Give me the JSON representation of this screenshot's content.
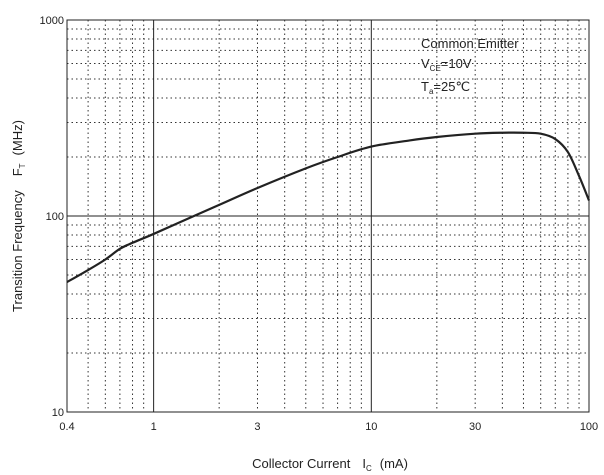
{
  "chart_data": {
    "type": "line",
    "xscale": "log",
    "yscale": "log",
    "xlim": [
      0.4,
      100
    ],
    "ylim": [
      10,
      1000
    ],
    "grid": true,
    "xlabel": {
      "text": "Collector Current",
      "symbol": "I",
      "subscript": "C",
      "unit": "(mA)"
    },
    "ylabel": {
      "text": "Transition Frequency",
      "symbol": "F",
      "subscript": "T",
      "unit": "(MHz)"
    },
    "x_ticks": [
      {
        "value": 0.4,
        "label": "0.4"
      },
      {
        "value": 1,
        "label": "1"
      },
      {
        "value": 3,
        "label": "3"
      },
      {
        "value": 10,
        "label": "10"
      },
      {
        "value": 30,
        "label": "30"
      },
      {
        "value": 100,
        "label": "100"
      }
    ],
    "y_ticks": [
      {
        "value": 10,
        "label": "10"
      },
      {
        "value": 100,
        "label": "100"
      },
      {
        "value": 1000,
        "label": "1000"
      }
    ],
    "annotations": [
      {
        "main": "Common Emitter",
        "sub": "",
        "rest": ""
      },
      {
        "main": "V",
        "sub": "CE",
        "rest": "=10V"
      },
      {
        "main": "T",
        "sub": "a",
        "rest": "=25℃"
      }
    ],
    "series": [
      {
        "color": "#222222",
        "x": [
          0.4,
          0.5,
          0.6,
          0.7,
          0.8,
          1.0,
          1.5,
          2,
          3,
          5,
          7,
          10,
          15,
          20,
          30,
          40,
          50,
          60,
          70,
          80,
          90,
          100
        ],
        "y": [
          46,
          53,
          60,
          68,
          73,
          81,
          99,
          114,
          139,
          175,
          200,
          226,
          243,
          253,
          263,
          266,
          266,
          263,
          247,
          212,
          160,
          120
        ]
      }
    ]
  }
}
